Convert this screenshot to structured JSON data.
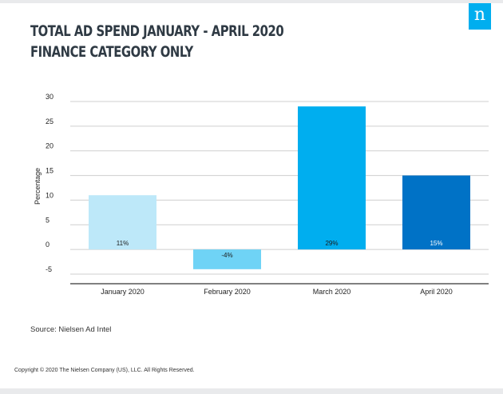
{
  "header": {
    "title_line1": "TOTAL AD SPEND JANUARY - APRIL 2020",
    "title_line2": "FINANCE CATEGORY ONLY",
    "logo_glyph": "n"
  },
  "footer": {
    "source": "Source: Nielsen Ad Intel",
    "copyright": "Copyright © 2020 The Nielsen Company (US), LLC. All Rights Reserved."
  },
  "colors": {
    "grid": "#cfcfcf",
    "axis": "#000000",
    "text": "#222222",
    "bar_label_dark": "#1a1a1a",
    "bar_label_light": "#ffffff"
  },
  "chart_data": {
    "type": "bar",
    "title": "TOTAL AD SPEND JANUARY - APRIL 2020 FINANCE CATEGORY ONLY",
    "xlabel": "",
    "ylabel": "Percentage",
    "ylim": [
      -5,
      30
    ],
    "yticks": [
      30,
      25,
      20,
      15,
      10,
      5,
      0,
      -5
    ],
    "grid": true,
    "categories": [
      "January 2020",
      "February 2020",
      "March 2020",
      "April 2020"
    ],
    "values": [
      11,
      -4,
      29,
      15
    ],
    "data_labels": [
      "11%",
      "-4%",
      "29%",
      "15%"
    ],
    "bar_colors": [
      "#bde8f9",
      "#6fd3f6",
      "#00aeef",
      "#0072c6"
    ]
  }
}
